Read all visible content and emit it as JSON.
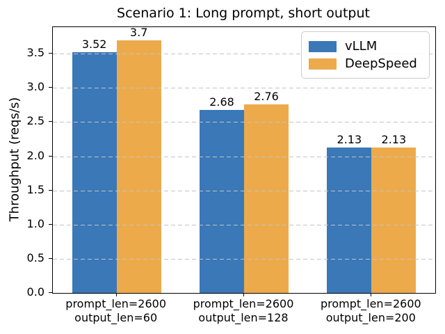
{
  "chart_data": {
    "type": "bar",
    "title": "Scenario 1: Long prompt, short output",
    "xlabel": "",
    "ylabel": "Throughput (reqs/s)",
    "categories": [
      "prompt_len=2600\noutput_len=60",
      "prompt_len=2600\noutput_len=128",
      "prompt_len=2600\noutput_len=200"
    ],
    "series": [
      {
        "name": "vLLM",
        "color": "#3a78b8",
        "values": [
          3.52,
          2.68,
          2.13
        ],
        "value_labels": [
          "3.52",
          "2.68",
          "2.13"
        ]
      },
      {
        "name": "DeepSpeed",
        "color": "#edaa4b",
        "values": [
          3.7,
          2.76,
          2.13
        ],
        "value_labels": [
          "3.7",
          "2.76",
          "2.13"
        ]
      }
    ],
    "yticks": [
      "0.0",
      "0.5",
      "1.0",
      "1.5",
      "2.0",
      "2.5",
      "3.0",
      "3.5"
    ],
    "ylim": [
      0,
      3.89
    ],
    "grid": "horizontal-dashed",
    "grid_color": "#c3c3c3",
    "legend_position": "upper right"
  }
}
